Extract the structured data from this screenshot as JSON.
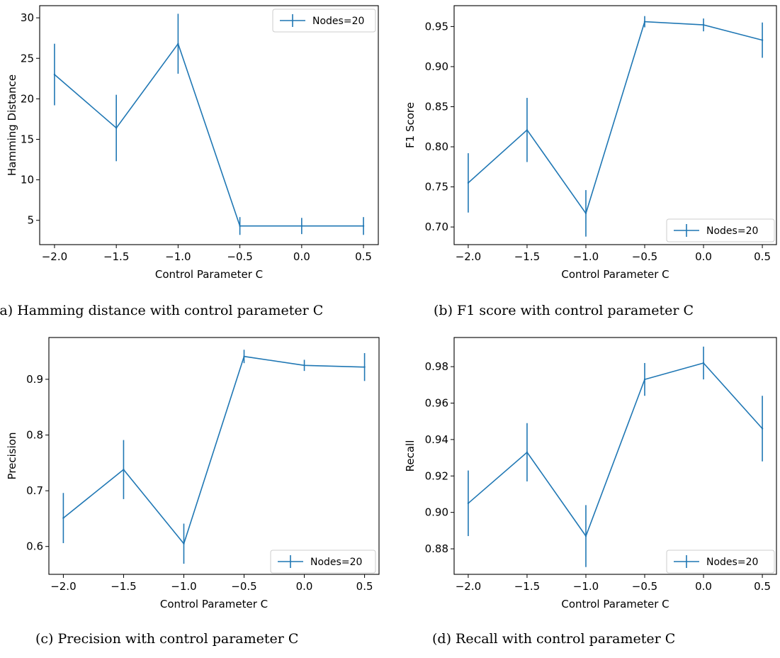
{
  "chart_data": [
    {
      "type": "line",
      "caption": "(a) Hamming distance with control parameter C",
      "xlabel": "Control Parameter C",
      "ylabel": "Hamming Distance",
      "x": [
        -2.0,
        -1.5,
        -1.0,
        -0.5,
        0.0,
        0.5
      ],
      "xticks": [
        "−2.0",
        "−1.5",
        "−1.0",
        "−0.5",
        "0.0",
        "0.5"
      ],
      "xlim": [
        -2.12,
        0.62
      ],
      "ylim": [
        2.0,
        31.5
      ],
      "yticks": [
        5,
        10,
        15,
        20,
        25,
        30
      ],
      "yticklabels": [
        "5",
        "10",
        "15",
        "20",
        "25",
        "30"
      ],
      "series": [
        {
          "name": "Nodes=20",
          "color": "#1f77b4",
          "values": [
            23.0,
            16.4,
            26.8,
            4.3,
            4.3,
            4.3
          ],
          "errors": [
            3.8,
            4.1,
            3.7,
            1.1,
            1.0,
            1.1
          ]
        }
      ],
      "legend": "top-right"
    },
    {
      "type": "line",
      "caption": "(b) F1 score with control parameter C",
      "xlabel": "Control Parameter C",
      "ylabel": "F1 Score",
      "x": [
        -2.0,
        -1.5,
        -1.0,
        -0.5,
        0.0,
        0.5
      ],
      "xticks": [
        "−2.0",
        "−1.5",
        "−1.0",
        "−0.5",
        "0.0",
        "0.5"
      ],
      "xlim": [
        -2.12,
        0.62
      ],
      "ylim": [
        0.678,
        0.976
      ],
      "yticks": [
        0.7,
        0.75,
        0.8,
        0.85,
        0.9,
        0.95
      ],
      "yticklabels": [
        "0.70",
        "0.75",
        "0.80",
        "0.85",
        "0.90",
        "0.95"
      ],
      "series": [
        {
          "name": "Nodes=20",
          "color": "#1f77b4",
          "values": [
            0.755,
            0.821,
            0.717,
            0.956,
            0.952,
            0.933
          ],
          "errors": [
            0.037,
            0.04,
            0.029,
            0.007,
            0.008,
            0.022
          ]
        }
      ],
      "legend": "bottom-right"
    },
    {
      "type": "line",
      "caption": "(c) Precision with control parameter C",
      "xlabel": "Control Parameter C",
      "ylabel": "Precision",
      "x": [
        -2.0,
        -1.5,
        -1.0,
        -0.5,
        0.0,
        0.5
      ],
      "xticks": [
        "−2.0",
        "−1.5",
        "−1.0",
        "−0.5",
        "0.0",
        "0.5"
      ],
      "xlim": [
        -2.12,
        0.62
      ],
      "ylim": [
        0.55,
        0.975
      ],
      "yticks": [
        0.6,
        0.7,
        0.8,
        0.9
      ],
      "yticklabels": [
        "0.6",
        "0.7",
        "0.8",
        "0.9"
      ],
      "series": [
        {
          "name": "Nodes=20",
          "color": "#1f77b4",
          "values": [
            0.651,
            0.738,
            0.605,
            0.941,
            0.925,
            0.922
          ],
          "errors": [
            0.045,
            0.053,
            0.036,
            0.012,
            0.01,
            0.025
          ]
        }
      ],
      "legend": "bottom-right"
    },
    {
      "type": "line",
      "caption": "(d) Recall with control parameter C",
      "xlabel": "Control Parameter C",
      "ylabel": "Recall",
      "x": [
        -2.0,
        -1.5,
        -1.0,
        -0.5,
        0.0,
        0.5
      ],
      "xticks": [
        "−2.0",
        "−1.5",
        "−1.0",
        "−0.5",
        "0.0",
        "0.5"
      ],
      "xlim": [
        -2.12,
        0.62
      ],
      "ylim": [
        0.866,
        0.996
      ],
      "yticks": [
        0.88,
        0.9,
        0.92,
        0.94,
        0.96,
        0.98
      ],
      "yticklabels": [
        "0.88",
        "0.90",
        "0.92",
        "0.94",
        "0.96",
        "0.98"
      ],
      "series": [
        {
          "name": "Nodes=20",
          "color": "#1f77b4",
          "values": [
            0.905,
            0.933,
            0.887,
            0.973,
            0.982,
            0.946
          ],
          "errors": [
            0.018,
            0.016,
            0.017,
            0.009,
            0.009,
            0.018
          ]
        }
      ],
      "legend": "bottom-right"
    }
  ]
}
